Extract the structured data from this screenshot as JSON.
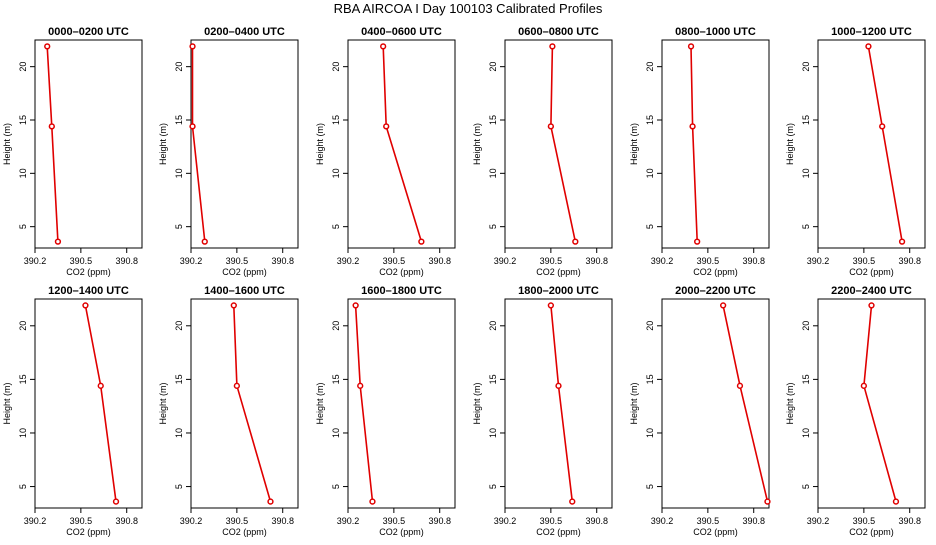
{
  "figure": {
    "title": "RBA AIRCOA I  Day 100103  Calibrated Profiles"
  },
  "chart_data": [
    {
      "type": "line",
      "title": "0000–0200 UTC",
      "xlabel": "CO2 (ppm)",
      "ylabel": "Height (m)",
      "xlim": [
        390.2,
        390.9
      ],
      "ylim": [
        3,
        22.5
      ],
      "xticks": [
        "390.2",
        "390.5",
        "390.8"
      ],
      "yticks": [
        "5",
        "10",
        "15",
        "20"
      ],
      "x": [
        390.28,
        390.31,
        390.35
      ],
      "y": [
        21.9,
        14.4,
        3.6
      ]
    },
    {
      "type": "line",
      "title": "0200–0400 UTC",
      "xlabel": "CO2 (ppm)",
      "ylabel": "Height (m)",
      "xlim": [
        390.2,
        390.9
      ],
      "ylim": [
        3,
        22.5
      ],
      "xticks": [
        "390.2",
        "390.5",
        "390.8"
      ],
      "yticks": [
        "5",
        "10",
        "15",
        "20"
      ],
      "x": [
        390.21,
        390.21,
        390.29
      ],
      "y": [
        21.9,
        14.4,
        3.6
      ]
    },
    {
      "type": "line",
      "title": "0400–0600 UTC",
      "xlabel": "CO2 (ppm)",
      "ylabel": "Height (m)",
      "xlim": [
        390.2,
        390.9
      ],
      "ylim": [
        3,
        22.5
      ],
      "xticks": [
        "390.2",
        "390.5",
        "390.8"
      ],
      "yticks": [
        "5",
        "10",
        "15",
        "20"
      ],
      "x": [
        390.43,
        390.45,
        390.68
      ],
      "y": [
        21.9,
        14.4,
        3.6
      ]
    },
    {
      "type": "line",
      "title": "0600–0800 UTC",
      "xlabel": "CO2 (ppm)",
      "ylabel": "Height (m)",
      "xlim": [
        390.2,
        390.9
      ],
      "ylim": [
        3,
        22.5
      ],
      "xticks": [
        "390.2",
        "390.5",
        "390.8"
      ],
      "yticks": [
        "5",
        "10",
        "15",
        "20"
      ],
      "x": [
        390.51,
        390.5,
        390.66
      ],
      "y": [
        21.9,
        14.4,
        3.6
      ]
    },
    {
      "type": "line",
      "title": "0800–1000 UTC",
      "xlabel": "CO2 (ppm)",
      "ylabel": "Height (m)",
      "xlim": [
        390.2,
        390.9
      ],
      "ylim": [
        3,
        22.5
      ],
      "xticks": [
        "390.2",
        "390.5",
        "390.8"
      ],
      "yticks": [
        "5",
        "10",
        "15",
        "20"
      ],
      "x": [
        390.39,
        390.4,
        390.43
      ],
      "y": [
        21.9,
        14.4,
        3.6
      ]
    },
    {
      "type": "line",
      "title": "1000–1200 UTC",
      "xlabel": "CO2 (ppm)",
      "ylabel": "Height (m)",
      "xlim": [
        390.2,
        390.9
      ],
      "ylim": [
        3,
        22.5
      ],
      "xticks": [
        "390.2",
        "390.5",
        "390.8"
      ],
      "yticks": [
        "5",
        "10",
        "15",
        "20"
      ],
      "x": [
        390.53,
        390.62,
        390.75
      ],
      "y": [
        21.9,
        14.4,
        3.6
      ]
    },
    {
      "type": "line",
      "title": "1200–1400 UTC",
      "xlabel": "CO2 (ppm)",
      "ylabel": "Height (m)",
      "xlim": [
        390.2,
        390.9
      ],
      "ylim": [
        3,
        22.5
      ],
      "xticks": [
        "390.2",
        "390.5",
        "390.8"
      ],
      "yticks": [
        "5",
        "10",
        "15",
        "20"
      ],
      "x": [
        390.53,
        390.63,
        390.73
      ],
      "y": [
        21.9,
        14.4,
        3.6
      ]
    },
    {
      "type": "line",
      "title": "1400–1600 UTC",
      "xlabel": "CO2 (ppm)",
      "ylabel": "Height (m)",
      "xlim": [
        390.2,
        390.9
      ],
      "ylim": [
        3,
        22.5
      ],
      "xticks": [
        "390.2",
        "390.5",
        "390.8"
      ],
      "yticks": [
        "5",
        "10",
        "15",
        "20"
      ],
      "x": [
        390.48,
        390.5,
        390.72
      ],
      "y": [
        21.9,
        14.4,
        3.6
      ]
    },
    {
      "type": "line",
      "title": "1600–1800 UTC",
      "xlabel": "CO2 (ppm)",
      "ylabel": "Height (m)",
      "xlim": [
        390.2,
        390.9
      ],
      "ylim": [
        3,
        22.5
      ],
      "xticks": [
        "390.2",
        "390.5",
        "390.8"
      ],
      "yticks": [
        "5",
        "10",
        "15",
        "20"
      ],
      "x": [
        390.25,
        390.28,
        390.36
      ],
      "y": [
        21.9,
        14.4,
        3.6
      ]
    },
    {
      "type": "line",
      "title": "1800–2000 UTC",
      "xlabel": "CO2 (ppm)",
      "ylabel": "Height (m)",
      "xlim": [
        390.2,
        390.9
      ],
      "ylim": [
        3,
        22.5
      ],
      "xticks": [
        "390.2",
        "390.5",
        "390.8"
      ],
      "yticks": [
        "5",
        "10",
        "15",
        "20"
      ],
      "x": [
        390.5,
        390.55,
        390.64
      ],
      "y": [
        21.9,
        14.4,
        3.6
      ]
    },
    {
      "type": "line",
      "title": "2000–2200 UTC",
      "xlabel": "CO2 (ppm)",
      "ylabel": "Height (m)",
      "xlim": [
        390.2,
        390.9
      ],
      "ylim": [
        3,
        22.5
      ],
      "xticks": [
        "390.2",
        "390.5",
        "390.8"
      ],
      "yticks": [
        "5",
        "10",
        "15",
        "20"
      ],
      "x": [
        390.6,
        390.71,
        390.89
      ],
      "y": [
        21.9,
        14.4,
        3.6
      ]
    },
    {
      "type": "line",
      "title": "2200–2400 UTC",
      "xlabel": "CO2 (ppm)",
      "ylabel": "Height (m)",
      "xlim": [
        390.2,
        390.9
      ],
      "ylim": [
        3,
        22.5
      ],
      "xticks": [
        "390.2",
        "390.5",
        "390.8"
      ],
      "yticks": [
        "5",
        "10",
        "15",
        "20"
      ],
      "x": [
        390.55,
        390.5,
        390.71
      ],
      "y": [
        21.9,
        14.4,
        3.6
      ]
    }
  ],
  "style": {
    "line_color": "#e00000",
    "marker_color": "#e00000",
    "axis_color": "#000000",
    "text_color": "#000000",
    "background": "#ffffff"
  }
}
